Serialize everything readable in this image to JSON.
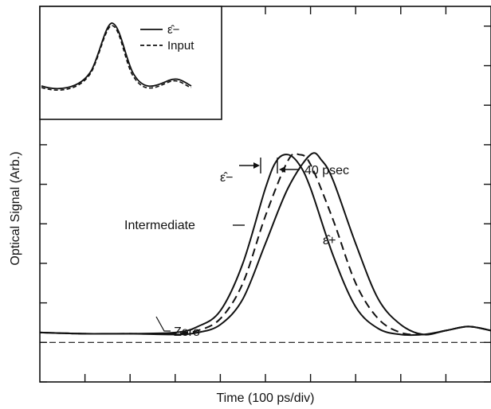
{
  "chart_data": {
    "type": "line",
    "xlabel": "Time (100 ps/div)",
    "ylabel": "Optical Signal (Arb.)",
    "x_unit": "ps",
    "xlim": [
      0,
      1000
    ],
    "ylim": [
      -1.0,
      8.5
    ],
    "grid": false,
    "series": [
      {
        "name": "ε̂−",
        "style": "solid",
        "x": [
          0,
          100,
          200,
          300,
          350,
          400,
          450,
          500,
          525,
          550,
          575,
          600,
          650,
          700,
          750,
          800,
          850,
          900,
          950,
          1000
        ],
        "y": [
          0.25,
          0.22,
          0.22,
          0.25,
          0.4,
          0.8,
          2.0,
          3.9,
          4.6,
          4.75,
          4.5,
          3.9,
          2.2,
          0.9,
          0.35,
          0.2,
          0.2,
          0.3,
          0.4,
          0.3
        ]
      },
      {
        "name": "Intermediate",
        "style": "dashed",
        "x": [
          0,
          100,
          200,
          300,
          350,
          400,
          450,
          500,
          550,
          575,
          600,
          650,
          700,
          750,
          800,
          850,
          900,
          950,
          1000
        ],
        "y": [
          0.25,
          0.22,
          0.22,
          0.22,
          0.3,
          0.6,
          1.5,
          3.2,
          4.6,
          4.75,
          4.5,
          3.1,
          1.5,
          0.6,
          0.25,
          0.2,
          0.3,
          0.4,
          0.3
        ]
      },
      {
        "name": "ε̂+",
        "style": "solid",
        "x": [
          0,
          100,
          200,
          300,
          350,
          400,
          450,
          500,
          550,
          600,
          625,
          650,
          700,
          750,
          800,
          850,
          900,
          950,
          1000
        ],
        "y": [
          0.25,
          0.22,
          0.22,
          0.2,
          0.25,
          0.45,
          1.1,
          2.5,
          3.9,
          4.75,
          4.6,
          4.1,
          2.5,
          1.1,
          0.45,
          0.2,
          0.3,
          0.4,
          0.3
        ]
      },
      {
        "name": "Zero",
        "style": "dashed",
        "x": [
          0,
          1000
        ],
        "y": [
          0,
          0
        ]
      }
    ],
    "annotations": [
      {
        "text": "ε̂−"
      },
      {
        "text": "40 psec"
      },
      {
        "text": "Intermediate"
      },
      {
        "text": "ε̂+"
      },
      {
        "text": "Zero"
      }
    ],
    "inset": {
      "series": [
        {
          "name": "ε̂−",
          "style": "solid"
        },
        {
          "name": "Input",
          "style": "dashed"
        }
      ]
    }
  }
}
